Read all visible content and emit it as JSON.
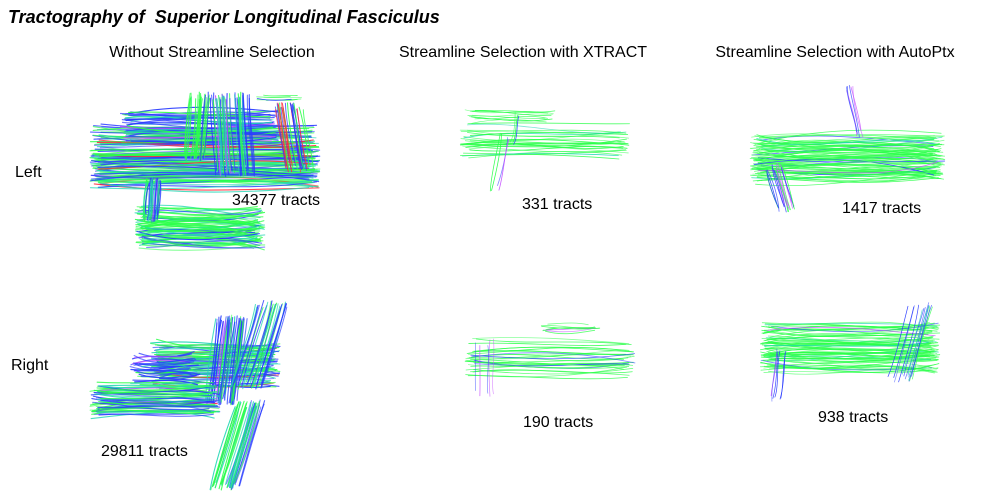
{
  "figure": {
    "title": "Tractography of  Superior Longitudinal Fasciculus",
    "columns": [
      "Without Streamline Selection",
      "Streamline Selection with XTRACT",
      "Streamline Selection with AutoPtx"
    ],
    "rows": [
      "Left",
      "Right"
    ],
    "tract_counts": {
      "left": [
        "34377 tracts",
        "331 tracts",
        "1417 tracts"
      ],
      "right": [
        "29811 tracts",
        "190 tracts",
        "938 tracts"
      ]
    }
  },
  "colors": {
    "green": "#2bff4a",
    "cyan": "#22d6b4",
    "blue": "#2a3cff",
    "red": "#ff2a3a",
    "magenta": "#c44cff"
  },
  "images": [
    {
      "row": "Left",
      "column": "Without Streamline Selection",
      "description": "dense tractography bundle, green/blue/red fibers"
    },
    {
      "row": "Left",
      "column": "Streamline Selection with XTRACT",
      "description": "sparse green fiber bundle"
    },
    {
      "row": "Left",
      "column": "Streamline Selection with AutoPtx",
      "description": "medium green fiber bundle"
    },
    {
      "row": "Right",
      "column": "Without Streamline Selection",
      "description": "dense tractography bundle, green/blue/red fibers"
    },
    {
      "row": "Right",
      "column": "Streamline Selection with XTRACT",
      "description": "sparse green fiber bundle"
    },
    {
      "row": "Right",
      "column": "Streamline Selection with AutoPtx",
      "description": "medium green fiber bundle"
    }
  ]
}
